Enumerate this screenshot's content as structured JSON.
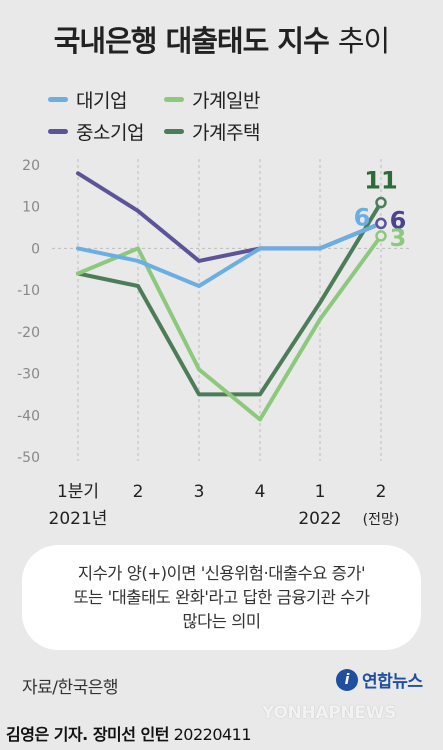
{
  "title": {
    "bold": "국내은행 대출태도 지수",
    "light": "추이"
  },
  "legend": [
    {
      "label": "대기업",
      "color": "#6aaee3"
    },
    {
      "label": "가계일반",
      "color": "#8cc97c"
    },
    {
      "label": "중소기업",
      "color": "#5b5498"
    },
    {
      "label": "가계주택",
      "color": "#4d7d58"
    }
  ],
  "chart_data": {
    "type": "line",
    "categories": [
      "1분기\n2021년",
      "2",
      "3",
      "4",
      "1\n2022",
      "2\n(전망)"
    ],
    "category_lines": [
      [
        "1분기",
        "2021년"
      ],
      [
        "2",
        ""
      ],
      [
        "3",
        ""
      ],
      [
        "4",
        ""
      ],
      [
        "1",
        "2022"
      ],
      [
        "2",
        "(전망)"
      ]
    ],
    "ylim": [
      -50,
      20
    ],
    "yticks": [
      20,
      10,
      0,
      -10,
      -20,
      -30,
      -40,
      -50
    ],
    "grid": "vertical-dashed",
    "series": [
      {
        "name": "대기업",
        "color": "#6aaee3",
        "values": [
          0,
          -3,
          -9,
          0,
          0,
          6
        ]
      },
      {
        "name": "중소기업",
        "color": "#5b5498",
        "values": [
          18,
          9,
          -3,
          0,
          0,
          6
        ]
      },
      {
        "name": "가계일반",
        "color": "#8cc97c",
        "values": [
          -6,
          0,
          -29,
          -41,
          -17,
          3
        ]
      },
      {
        "name": "가계주택",
        "color": "#4d7d58",
        "values": [
          -6,
          -9,
          -35,
          -35,
          -13,
          11
        ]
      }
    ],
    "endpoint_labels": [
      {
        "text": "11",
        "color": "#2d6b3a"
      },
      {
        "text": "6",
        "color": "#6aaee3"
      },
      {
        "text": "6",
        "color": "#4a4490"
      },
      {
        "text": "3",
        "color": "#8cc97c"
      }
    ]
  },
  "note": "지수가 양(+)이면 '신용위험·대출수요 증가'\n또는 '대출태도 완화'라고 답한 금융기관 수가\n많다는 의미",
  "source": "자료/한국은행",
  "logo": {
    "mark": "i",
    "text": "연합뉴스"
  },
  "watermark": "YONHAPNEWS",
  "credit": {
    "name": "김영은 기자. 장미선 인턴",
    "date": "20220411"
  }
}
